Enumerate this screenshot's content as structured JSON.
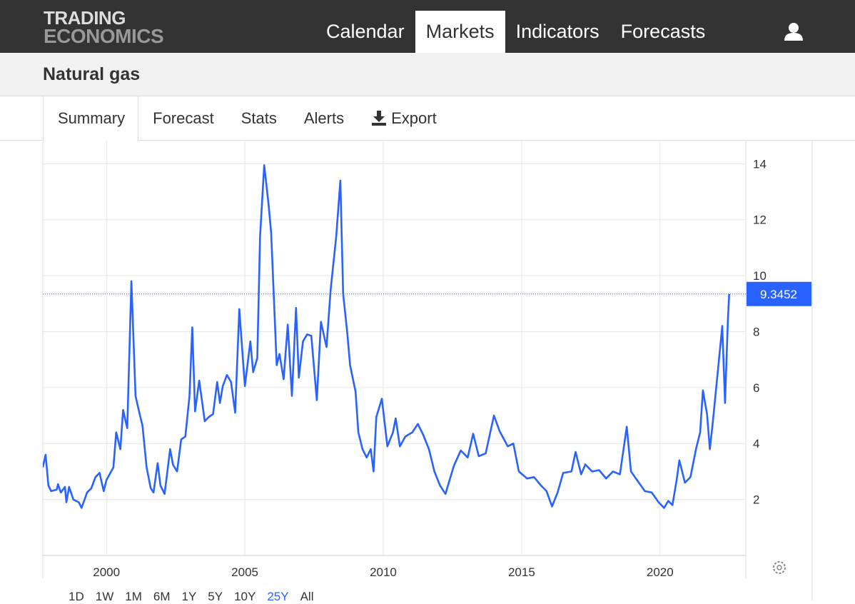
{
  "header": {
    "logo": [
      "TRADING",
      "ECONOMICS"
    ],
    "nav": [
      "Calendar",
      "Markets",
      "Indicators",
      "Forecasts"
    ],
    "active_nav": 1
  },
  "page_title": "Natural gas",
  "tabs": [
    "Summary",
    "Forecast",
    "Stats",
    "Alerts",
    "Export"
  ],
  "active_tab": 0,
  "chart_data": {
    "type": "line",
    "xlim": [
      1997.7,
      2023.1
    ],
    "ylim": [
      0,
      14.8
    ],
    "xticks": [
      2000,
      2005,
      2010,
      2015,
      2020
    ],
    "yticks": [
      2,
      4,
      6,
      8,
      10,
      12,
      14
    ],
    "grid": true,
    "last_value_line": true,
    "x": [
      1997.7,
      1997.8,
      1997.9,
      1998.0,
      1998.2,
      1998.25,
      1998.35,
      1998.5,
      1998.55,
      1998.65,
      1998.8,
      1999.0,
      1999.1,
      1999.3,
      1999.45,
      1999.6,
      1999.75,
      1999.9,
      2000.0,
      2000.25,
      2000.35,
      2000.5,
      2000.6,
      2000.75,
      2000.9,
      2001.05,
      2001.2,
      2001.3,
      2001.45,
      2001.6,
      2001.7,
      2001.85,
      2001.95,
      2002.1,
      2002.3,
      2002.4,
      2002.55,
      2002.7,
      2002.85,
      2003.0,
      2003.1,
      2003.2,
      2003.35,
      2003.55,
      2003.7,
      2003.85,
      2004.0,
      2004.1,
      2004.2,
      2004.35,
      2004.5,
      2004.65,
      2004.8,
      2005.0,
      2005.2,
      2005.3,
      2005.45,
      2005.55,
      2005.7,
      2005.85,
      2005.95,
      2006.15,
      2006.25,
      2006.4,
      2006.55,
      2006.7,
      2006.85,
      2006.95,
      2007.1,
      2007.25,
      2007.4,
      2007.6,
      2007.75,
      2007.95,
      2008.1,
      2008.3,
      2008.45,
      2008.55,
      2008.7,
      2008.8,
      2009.0,
      2009.1,
      2009.25,
      2009.4,
      2009.55,
      2009.65,
      2009.75,
      2009.95,
      2010.15,
      2010.35,
      2010.45,
      2010.6,
      2010.8,
      2011.05,
      2011.25,
      2011.45,
      2011.65,
      2011.85,
      2012.05,
      2012.25,
      2012.55,
      2012.8,
      2013.05,
      2013.25,
      2013.45,
      2013.7,
      2014.0,
      2014.2,
      2014.5,
      2014.7,
      2014.9,
      2015.2,
      2015.45,
      2015.7,
      2015.9,
      2016.1,
      2016.3,
      2016.5,
      2016.8,
      2016.95,
      2017.15,
      2017.3,
      2017.55,
      2017.8,
      2018.05,
      2018.3,
      2018.55,
      2018.8,
      2018.95,
      2019.2,
      2019.45,
      2019.7,
      2019.95,
      2020.15,
      2020.3,
      2020.45,
      2020.6,
      2020.7,
      2020.9,
      2021.1,
      2021.3,
      2021.45,
      2021.55,
      2021.7,
      2021.8,
      2021.9,
      2022.15,
      2022.25,
      2022.35,
      2022.45,
      2022.5
    ],
    "series": [
      {
        "color": "#2962ff",
        "values": [
          3.15,
          3.6,
          2.5,
          2.3,
          2.35,
          2.55,
          2.25,
          2.45,
          1.9,
          2.45,
          2.0,
          1.9,
          1.7,
          2.25,
          2.4,
          2.8,
          2.95,
          2.3,
          2.7,
          3.15,
          4.4,
          3.8,
          5.2,
          4.55,
          9.8,
          5.7,
          5.05,
          4.65,
          3.15,
          2.4,
          2.25,
          3.3,
          2.5,
          2.2,
          3.8,
          3.25,
          3.0,
          4.15,
          4.25,
          5.7,
          8.15,
          5.15,
          6.25,
          4.8,
          4.95,
          5.05,
          6.2,
          5.45,
          6.05,
          6.45,
          6.2,
          5.1,
          8.8,
          6.05,
          7.65,
          6.55,
          7.05,
          11.4,
          13.95,
          12.6,
          11.55,
          6.8,
          7.2,
          6.3,
          8.25,
          5.7,
          8.85,
          6.35,
          7.65,
          7.9,
          7.85,
          5.55,
          8.35,
          7.45,
          9.5,
          11.4,
          13.4,
          9.35,
          7.95,
          6.8,
          5.85,
          4.4,
          3.8,
          3.5,
          3.8,
          3.0,
          4.95,
          5.6,
          3.9,
          4.4,
          4.9,
          3.9,
          4.25,
          4.4,
          4.7,
          4.3,
          3.8,
          3.0,
          2.5,
          2.2,
          3.2,
          3.75,
          3.5,
          4.35,
          3.55,
          3.65,
          5.0,
          4.45,
          3.9,
          4.0,
          3.0,
          2.75,
          2.8,
          2.5,
          2.3,
          1.75,
          2.25,
          2.95,
          3.0,
          3.7,
          2.9,
          3.25,
          3.0,
          3.05,
          2.75,
          3.0,
          2.9,
          4.6,
          3.0,
          2.65,
          2.3,
          2.25,
          1.9,
          1.7,
          1.95,
          1.8,
          2.7,
          3.4,
          2.6,
          2.8,
          3.8,
          4.4,
          5.9,
          5.05,
          3.8,
          4.7,
          7.2,
          8.2,
          5.45,
          8.35,
          9.3452
        ]
      }
    ]
  },
  "ranges": [
    "1D",
    "1W",
    "1M",
    "6M",
    "1Y",
    "5Y",
    "10Y",
    "25Y",
    "All"
  ],
  "active_range": 7
}
